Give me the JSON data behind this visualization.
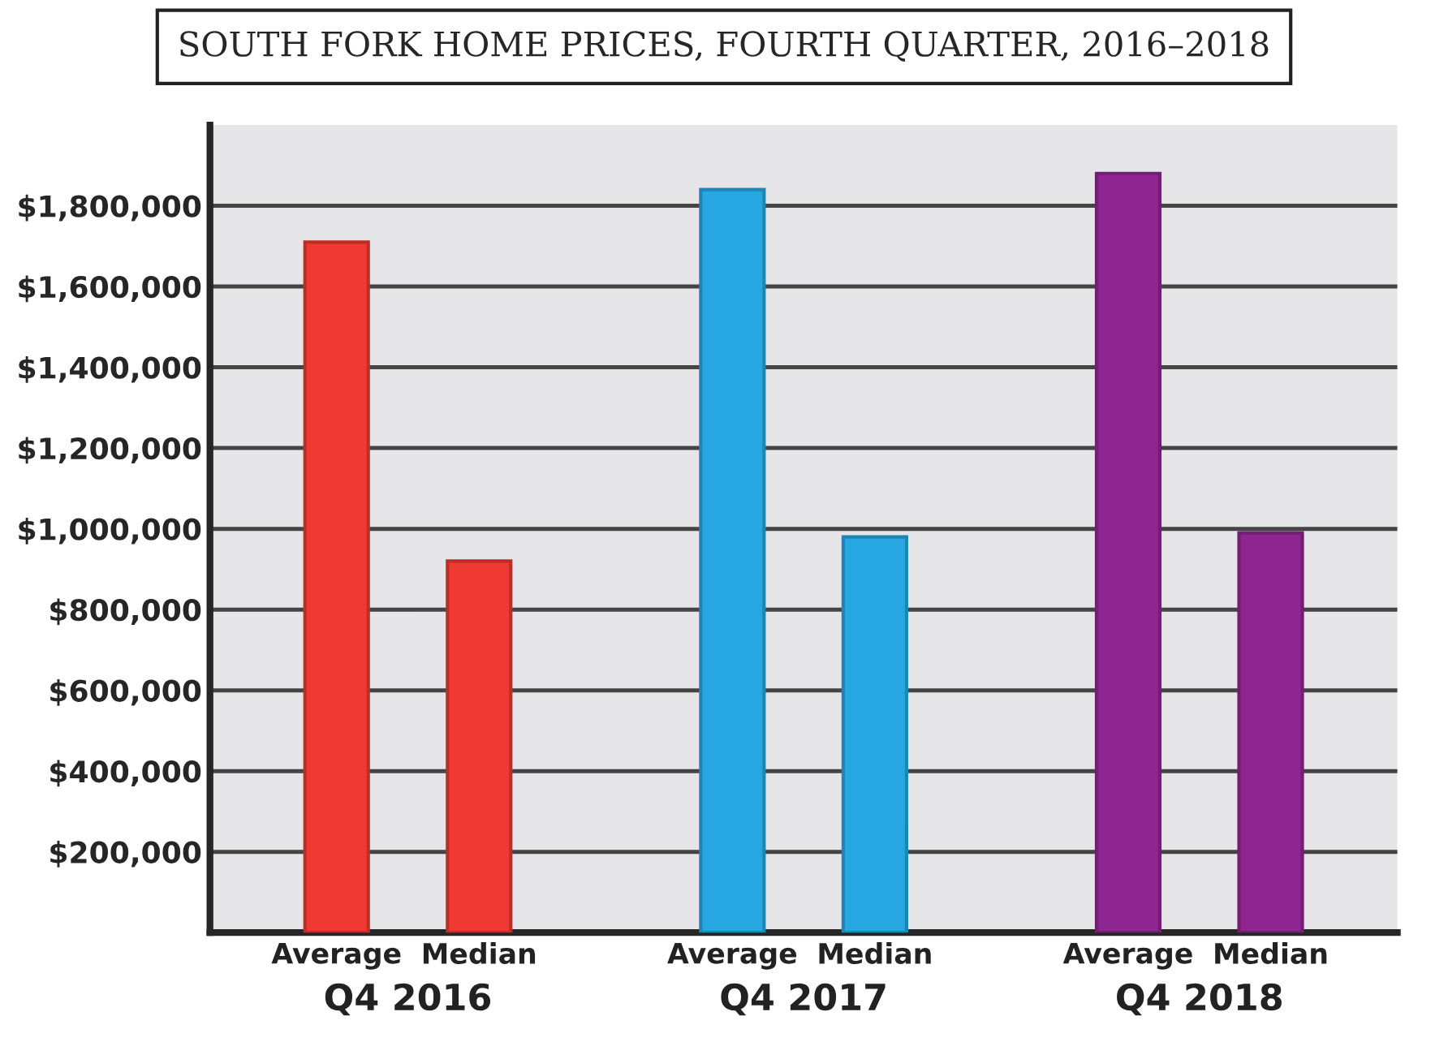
{
  "chart_data": {
    "type": "bar",
    "title": "SOUTH FORK HOME PRICES, FOURTH QUARTER, 2016–2018",
    "categories": [
      "Q4 2016",
      "Q4 2017",
      "Q4 2018"
    ],
    "series": [
      {
        "name": "Average",
        "colors": [
          "#ee3a33",
          "#27a7e1",
          "#8e2590"
        ],
        "values": [
          1710000,
          1840000,
          1880000
        ]
      },
      {
        "name": "Median",
        "colors": [
          "#ee3a33",
          "#27a7e1",
          "#8e2590"
        ],
        "values": [
          920000,
          980000,
          990000
        ]
      }
    ],
    "ylim": [
      0,
      2000000
    ],
    "yticks": [
      {
        "value": 200000,
        "label": "$200,000"
      },
      {
        "value": 400000,
        "label": "$400,000"
      },
      {
        "value": 600000,
        "label": "$600,000"
      },
      {
        "value": 800000,
        "label": "$800,000"
      },
      {
        "value": 1000000,
        "label": "$1,000,000"
      },
      {
        "value": 1200000,
        "label": "$1,200,000"
      },
      {
        "value": 1400000,
        "label": "$1,400,000"
      },
      {
        "value": 1600000,
        "label": "$1,600,000"
      },
      {
        "value": 1800000,
        "label": "$1,800,000"
      }
    ],
    "grid": "y",
    "legend": false
  }
}
